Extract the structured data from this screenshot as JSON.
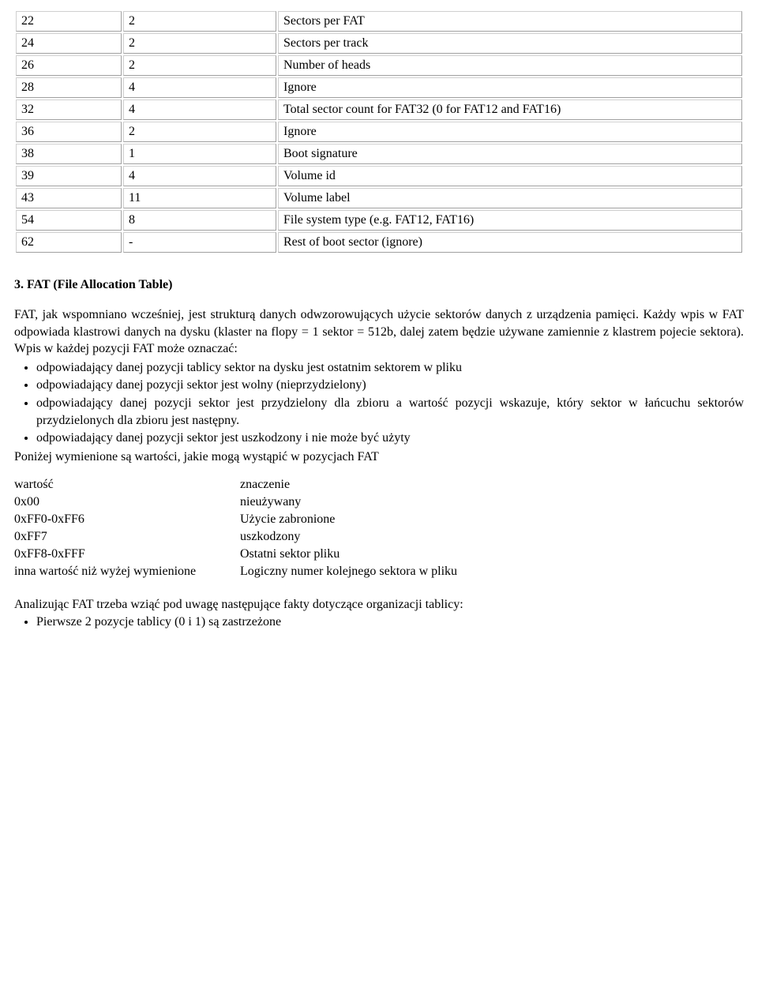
{
  "boot_table": {
    "rows": [
      {
        "offset": "22",
        "len": "2",
        "desc": "Sectors per FAT"
      },
      {
        "offset": "24",
        "len": "2",
        "desc": "Sectors per track"
      },
      {
        "offset": "26",
        "len": "2",
        "desc": "Number of heads"
      },
      {
        "offset": "28",
        "len": "4",
        "desc": "Ignore"
      },
      {
        "offset": "32",
        "len": "4",
        "desc": "Total sector count for FAT32 (0 for FAT12 and FAT16)"
      },
      {
        "offset": "36",
        "len": "2",
        "desc": "Ignore"
      },
      {
        "offset": "38",
        "len": "1",
        "desc": "Boot signature"
      },
      {
        "offset": "39",
        "len": "4",
        "desc": "Volume id"
      },
      {
        "offset": "43",
        "len": "11",
        "desc": "Volume label"
      },
      {
        "offset": "54",
        "len": "8",
        "desc": "File system type (e.g. FAT12, FAT16)"
      },
      {
        "offset": "62",
        "len": "-",
        "desc": "Rest of boot sector (ignore)"
      }
    ]
  },
  "section": {
    "title": "3. FAT (File Allocation Table)",
    "para": "FAT, jak wspomniano wcześniej, jest strukturą danych odwzorowujących użycie sektorów danych z urządzenia pamięci. Każdy wpis w FAT odpowiada klastrowi danych na dysku (klaster na flopy = 1 sektor = 512b, dalej zatem będzie używane zamiennie z klastrem pojecie sektora). Wpis w każdej pozycji FAT może oznaczać:",
    "bullets": [
      "odpowiadający danej pozycji tablicy sektor na dysku jest ostatnim sektorem w pliku",
      " odpowiadający danej pozycji sektor jest wolny (nieprzydzielony)",
      "odpowiadający danej pozycji sektor jest przydzielony dla zbioru a wartość pozycji wskazuje, który sektor w łańcuchu sektorów przydzielonych dla zbioru jest następny.",
      "odpowiadający danej pozycji sektor jest uszkodzony i nie może być użyty"
    ],
    "after_bullets": "Poniżej wymienione są wartości, jakie mogą wystąpić w pozycjach FAT"
  },
  "values_table": {
    "header": {
      "c1": "wartość",
      "c2": "znaczenie"
    },
    "rows": [
      {
        "c1": "0x00",
        "c2": "nieużywany"
      },
      {
        "c1": "0xFF0-0xFF6",
        "c2": "Użycie zabronione"
      },
      {
        "c1": "0xFF7",
        "c2": "uszkodzony"
      },
      {
        "c1": "0xFF8-0xFFF",
        "c2": "Ostatni sektor pliku"
      },
      {
        "c1": "inna wartość niż wyżej wymienione",
        "c2": "Logiczny numer kolejnego sektora w pliku"
      }
    ]
  },
  "closing": {
    "para": "Analizując FAT trzeba wziąć pod uwagę następujące fakty dotyczące organizacji tablicy:",
    "bullets": [
      "Pierwsze 2 pozycje tablicy (0 i 1) są zastrzeżone"
    ]
  }
}
